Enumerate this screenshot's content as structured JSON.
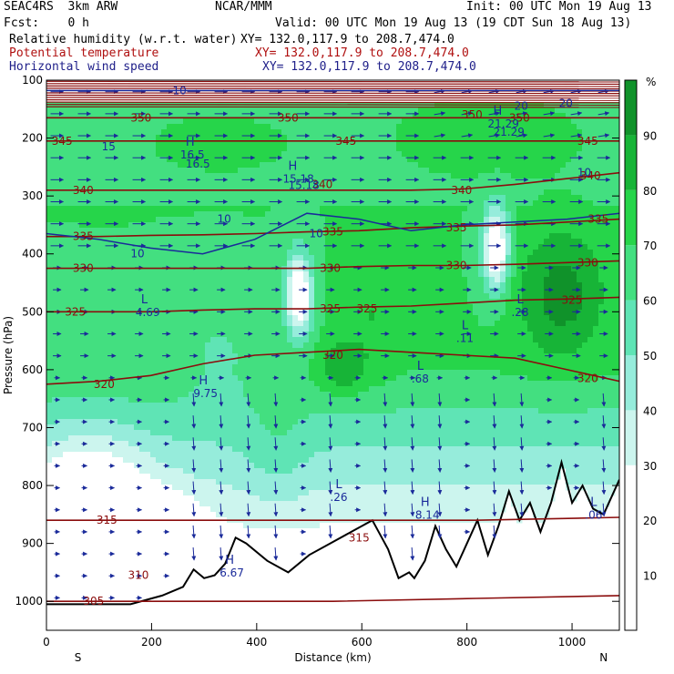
{
  "header": {
    "model": "SEAC4RS  3km ARW",
    "center": "NCAR/MMM",
    "init": "Init: 00 UTC Mon 19 Aug 13",
    "fcst": "Fcst:    0 h",
    "valid": "Valid: 00 UTC Mon 19 Aug 13 (19 CDT Sun 18 Aug 13)",
    "fields": [
      {
        "label": "Relative humidity (w.r.t. water)",
        "xy": "XY= 132.0,117.9 to 208.7,474.0",
        "color": "#000000"
      },
      {
        "label": "Potential temperature",
        "xy": "XY= 132.0,117.9 to 208.7,474.0",
        "color": "#b01010"
      },
      {
        "label": "Horizontal wind speed",
        "xy": "XY= 132.0,117.9 to 208.7,474.0",
        "color": "#20208a"
      }
    ]
  },
  "chart_data": {
    "type": "heatmap",
    "xlabel": "Distance (km)",
    "ylabel": "Pressure (hPa)",
    "xlim": [
      0,
      1090
    ],
    "ylim": [
      1050,
      100
    ],
    "x_ticks": [
      0,
      200,
      400,
      600,
      800,
      1000
    ],
    "y_ticks": [
      100,
      200,
      300,
      400,
      500,
      600,
      700,
      800,
      900,
      1000
    ],
    "x_ends": [
      "S",
      "N"
    ],
    "colorbar": {
      "unit": "%",
      "ticks": [
        10,
        20,
        30,
        40,
        50,
        60,
        70,
        80,
        90
      ],
      "levels": [
        0,
        30,
        40,
        50,
        60,
        70,
        80,
        90,
        100
      ],
      "colors": [
        "#ffffff",
        "#ccf5ee",
        "#96ecdb",
        "#5fe4b5",
        "#43df80",
        "#26d54a",
        "#17b437",
        "#10922a",
        "#0b6e1f"
      ]
    },
    "potential_temperature_contours": [
      {
        "value": 305,
        "label": "305",
        "p": [
          1000,
          1000,
          1000,
          995,
          990
        ]
      },
      {
        "value": 315,
        "label": "315",
        "p": [
          860,
          860,
          860,
          860,
          855
        ]
      },
      {
        "value": 320,
        "label": "320",
        "p": [
          625,
          620,
          610,
          590,
          575,
          570,
          565,
          570,
          575,
          580,
          600,
          620
        ]
      },
      {
        "value": 325,
        "label": "325",
        "p": [
          500,
          500,
          500,
          497,
          495,
          495,
          492,
          490,
          485,
          480,
          478,
          475
        ]
      },
      {
        "value": 330,
        "label": "330",
        "p": [
          425,
          425,
          425,
          425,
          425,
          425,
          422,
          420,
          420,
          418,
          415,
          412
        ]
      },
      {
        "value": 335,
        "label": "335",
        "p": [
          370,
          370,
          368,
          367,
          365,
          362,
          360,
          355,
          352,
          350,
          345,
          340
        ]
      },
      {
        "value": 340,
        "label": "340",
        "p": [
          290,
          290,
          290,
          290,
          290,
          290,
          290,
          290,
          288,
          280,
          270,
          260
        ]
      },
      {
        "value": 345,
        "label": "345",
        "p": [
          205,
          205,
          205,
          205,
          205,
          205,
          205,
          205,
          205,
          205,
          205,
          205
        ]
      },
      {
        "value": 350,
        "label": "350",
        "p": [
          165,
          165,
          165,
          165,
          165,
          165,
          165,
          165,
          165,
          165,
          165,
          165
        ]
      }
    ],
    "theta_labels": [
      {
        "text": "350",
        "x": 160,
        "p": 165
      },
      {
        "text": "350",
        "x": 440,
        "p": 165
      },
      {
        "text": "350",
        "x": 790,
        "p": 160
      },
      {
        "text": "350",
        "x": 880,
        "p": 165
      },
      {
        "text": "345",
        "x": 10,
        "p": 205
      },
      {
        "text": "345",
        "x": 550,
        "p": 205
      },
      {
        "text": "345",
        "x": 1010,
        "p": 205
      },
      {
        "text": "340",
        "x": 50,
        "p": 290
      },
      {
        "text": "340",
        "x": 505,
        "p": 280
      },
      {
        "text": "340",
        "x": 770,
        "p": 290
      },
      {
        "text": "340",
        "x": 1015,
        "p": 265
      },
      {
        "text": "335",
        "x": 50,
        "p": 370
      },
      {
        "text": "335",
        "x": 525,
        "p": 362
      },
      {
        "text": "335",
        "x": 760,
        "p": 355
      },
      {
        "text": "335",
        "x": 1030,
        "p": 340
      },
      {
        "text": "330",
        "x": 50,
        "p": 425
      },
      {
        "text": "330",
        "x": 520,
        "p": 425
      },
      {
        "text": "330",
        "x": 760,
        "p": 420
      },
      {
        "text": "330",
        "x": 1010,
        "p": 415
      },
      {
        "text": "325",
        "x": 35,
        "p": 500
      },
      {
        "text": "325",
        "x": 520,
        "p": 495
      },
      {
        "text": "325",
        "x": 590,
        "p": 495
      },
      {
        "text": "325",
        "x": 980,
        "p": 480
      },
      {
        "text": "320",
        "x": 90,
        "p": 625
      },
      {
        "text": "320",
        "x": 525,
        "p": 575
      },
      {
        "text": "320",
        "x": 1010,
        "p": 615
      },
      {
        "text": "315",
        "x": 95,
        "p": 860
      },
      {
        "text": "315",
        "x": 575,
        "p": 890
      },
      {
        "text": "310",
        "x": 155,
        "p": 955
      },
      {
        "text": "305",
        "x": 70,
        "p": 1000
      }
    ],
    "wind_contours": [
      {
        "value": 10,
        "p": [
          365,
          375,
          390,
          400,
          375,
          330,
          340,
          360,
          350,
          345,
          340,
          330
        ]
      },
      {
        "value": 10,
        "p": [
          118,
          118,
          118,
          118,
          118,
          118,
          118,
          118,
          118,
          118,
          118,
          118
        ]
      }
    ],
    "wind_labels": [
      {
        "text": "10",
        "x": 240,
        "p": 118
      },
      {
        "text": "10",
        "x": 160,
        "p": 400
      },
      {
        "text": "10",
        "x": 325,
        "p": 340
      },
      {
        "text": "10",
        "x": 500,
        "p": 365
      },
      {
        "text": "15",
        "x": 105,
        "p": 215
      },
      {
        "text": "16.5",
        "x": 265,
        "p": 245
      },
      {
        "text": "15.18",
        "x": 460,
        "p": 282
      },
      {
        "text": "20",
        "x": 890,
        "p": 145
      },
      {
        "text": "21.29",
        "x": 850,
        "p": 190
      },
      {
        "text": "20",
        "x": 975,
        "p": 140
      },
      {
        "text": "10",
        "x": 1010,
        "p": 260
      }
    ],
    "extrema": [
      {
        "type": "H",
        "value": "16.5",
        "x": 265,
        "p": 213
      },
      {
        "type": "H",
        "value": "15.18",
        "x": 460,
        "p": 255
      },
      {
        "type": "H",
        "value": "21.29",
        "x": 850,
        "p": 160
      },
      {
        "type": "L",
        "value": "4.69",
        "x": 180,
        "p": 485
      },
      {
        "type": "H",
        "value": "9.75",
        "x": 290,
        "p": 625
      },
      {
        "type": "L",
        "value": ".26",
        "x": 550,
        "p": 805
      },
      {
        "type": "L",
        "value": ".68",
        "x": 705,
        "p": 600
      },
      {
        "type": "L",
        "value": ".11",
        "x": 790,
        "p": 530
      },
      {
        "type": "L",
        "value": ".28",
        "x": 895,
        "p": 485
      },
      {
        "type": "H",
        "value": "8.14",
        "x": 712,
        "p": 835
      },
      {
        "type": "H",
        "value": "6.67",
        "x": 340,
        "p": 935
      },
      {
        "type": "L",
        "value": ".06",
        "x": 1035,
        "p": 835
      }
    ],
    "terrain": {
      "x": [
        0,
        80,
        160,
        220,
        260,
        280,
        300,
        320,
        340,
        360,
        380,
        420,
        460,
        500,
        540,
        580,
        620,
        650,
        670,
        690,
        700,
        720,
        740,
        760,
        780,
        800,
        820,
        840,
        860,
        880,
        900,
        920,
        940,
        960,
        980,
        1000,
        1020,
        1040,
        1060,
        1080,
        1090
      ],
      "p": [
        1005,
        1005,
        1005,
        990,
        975,
        945,
        960,
        955,
        935,
        890,
        900,
        930,
        950,
        920,
        900,
        880,
        860,
        910,
        960,
        950,
        960,
        930,
        870,
        910,
        940,
        900,
        860,
        920,
        870,
        810,
        860,
        830,
        880,
        830,
        760,
        830,
        800,
        840,
        850,
        810,
        790
      ]
    }
  }
}
